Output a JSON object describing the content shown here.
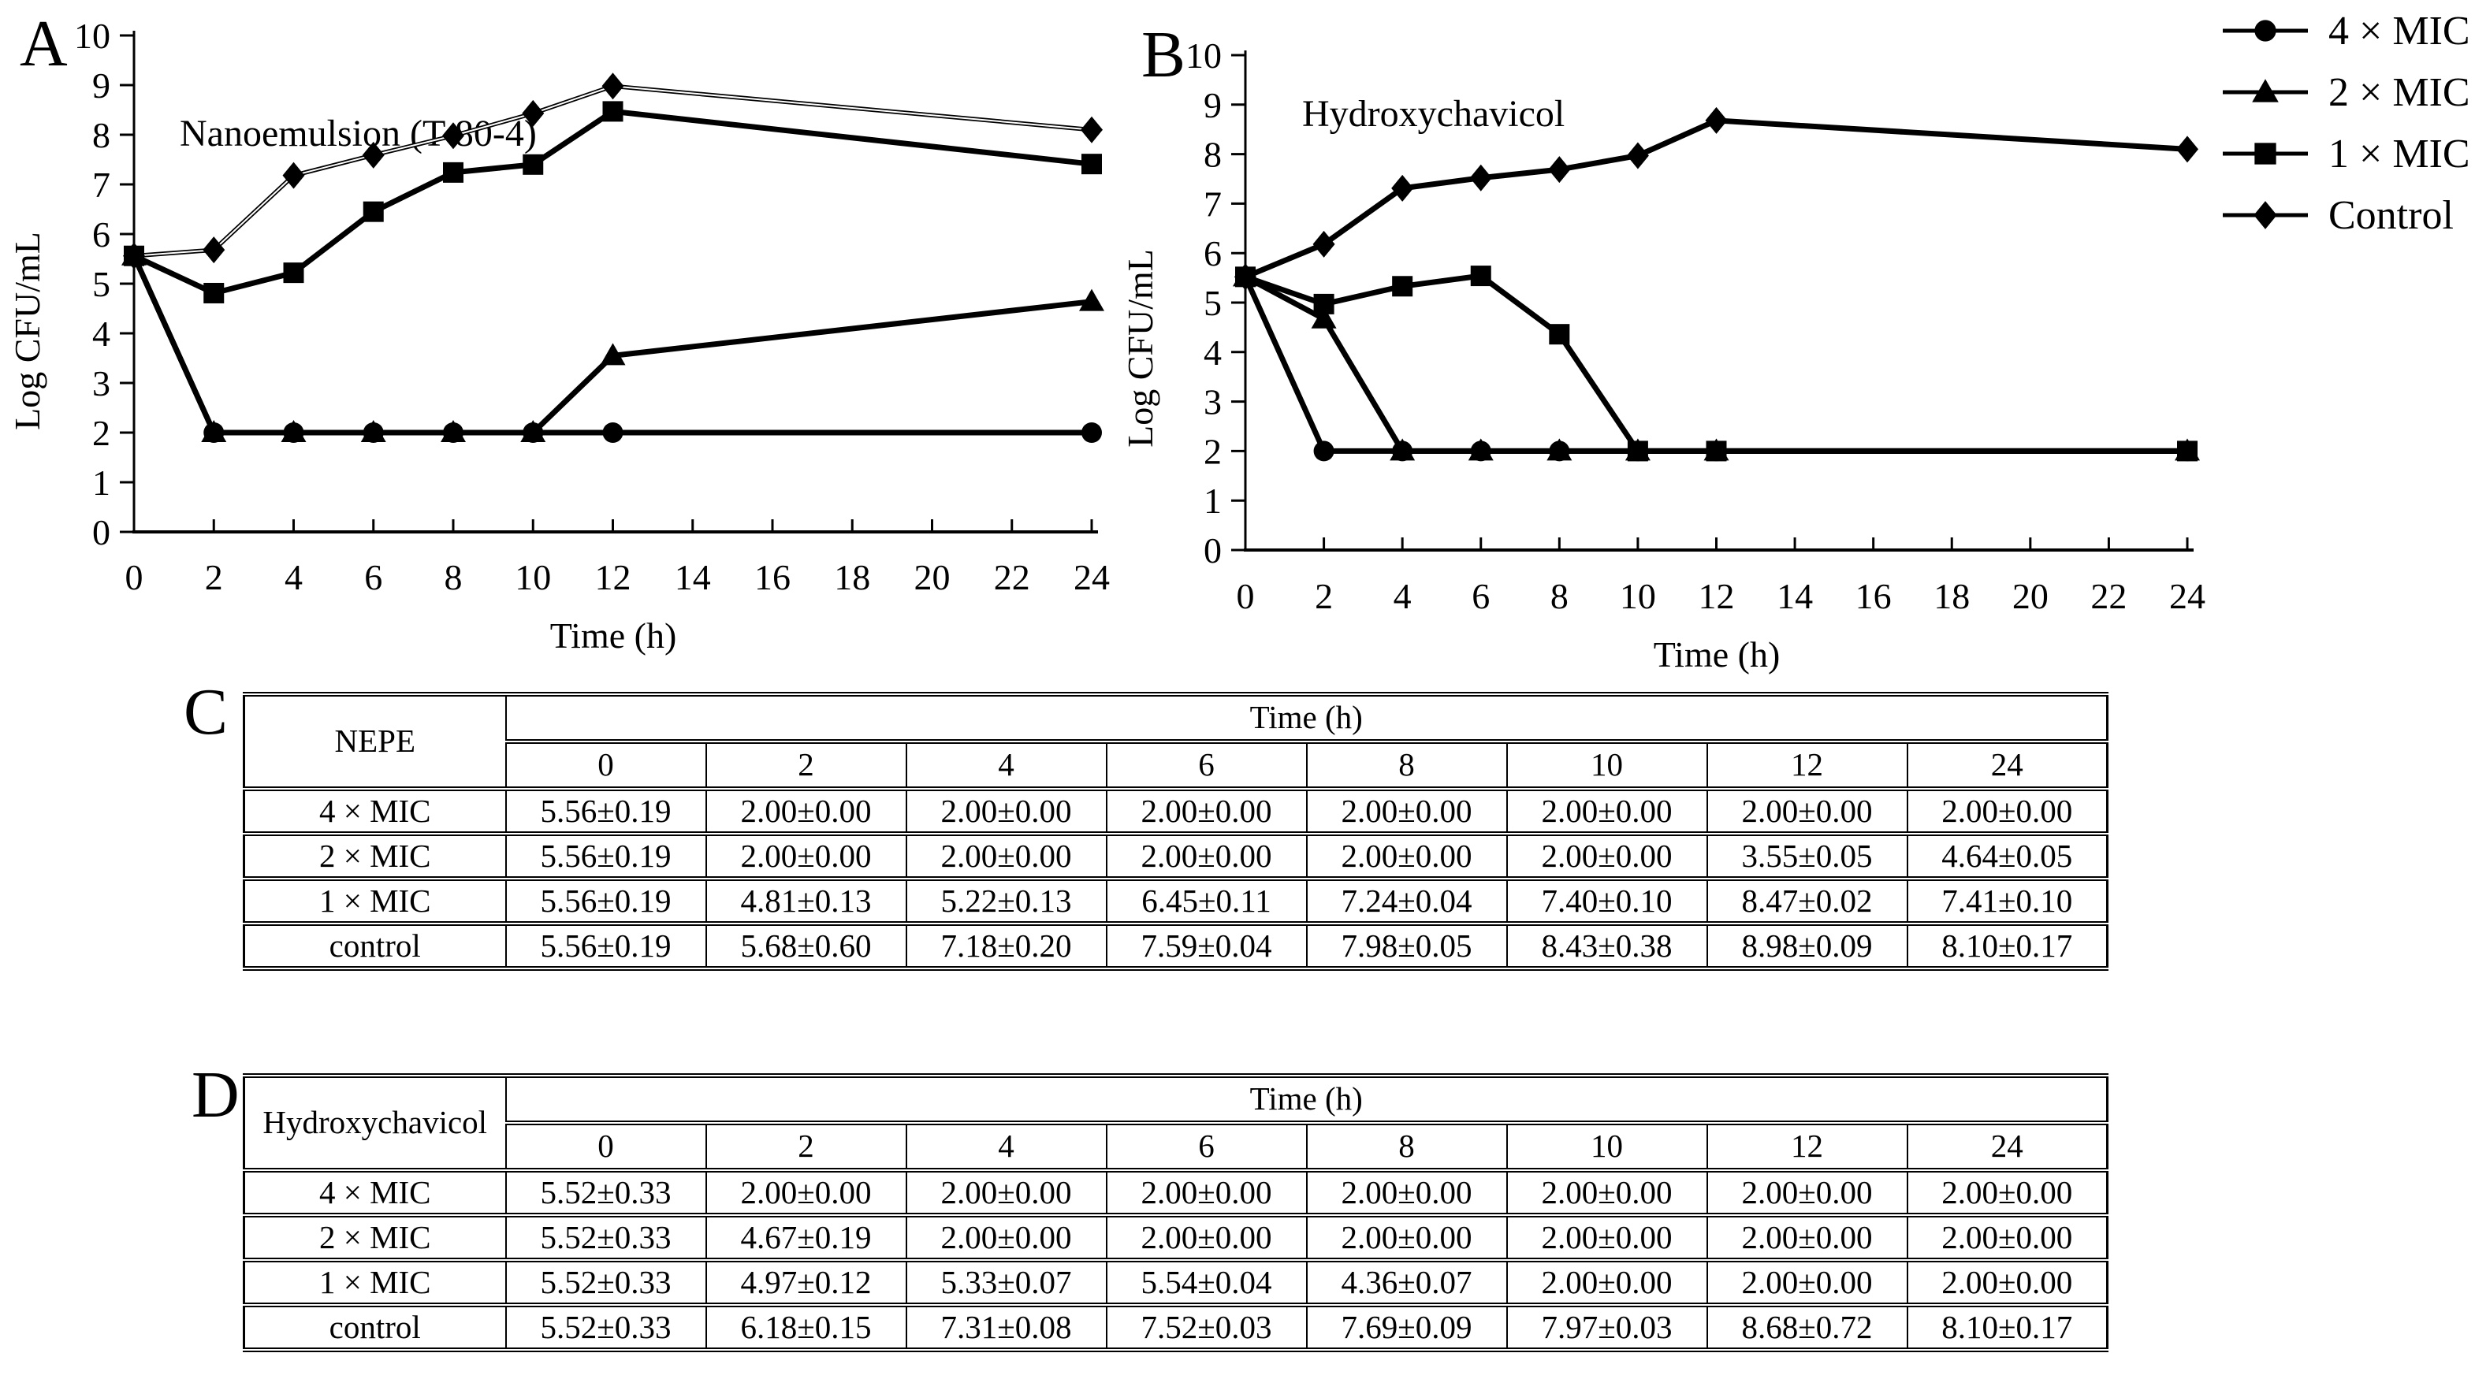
{
  "chart_data": [
    {
      "panel_label": "A",
      "type": "line",
      "title": "Nanoemulsion (T-80-4)",
      "xlabel": "Time (h)",
      "ylabel": "Log CFU/mL",
      "x": [
        0,
        2,
        4,
        6,
        8,
        10,
        12,
        24
      ],
      "xlim": [
        0,
        24
      ],
      "ylim": [
        0,
        10
      ],
      "x_ticks": [
        0,
        2,
        4,
        6,
        8,
        10,
        12,
        14,
        16,
        18,
        20,
        22,
        24
      ],
      "y_ticks": [
        0,
        1,
        2,
        3,
        4,
        5,
        6,
        7,
        8,
        9,
        10
      ],
      "grid": false,
      "legend_position": "outside-top-right",
      "series": [
        {
          "name": "4 × MIC",
          "marker": "circle",
          "values": [
            5.56,
            2.0,
            2.0,
            2.0,
            2.0,
            2.0,
            2.0,
            2.0
          ]
        },
        {
          "name": "2 × MIC",
          "marker": "triangle",
          "values": [
            5.56,
            2.0,
            2.0,
            2.0,
            2.0,
            2.0,
            3.55,
            4.64
          ]
        },
        {
          "name": "1 × MIC",
          "marker": "square",
          "values": [
            5.56,
            4.81,
            5.22,
            6.45,
            7.24,
            7.4,
            8.47,
            7.41
          ]
        },
        {
          "name": "Control",
          "marker": "diamond",
          "values": [
            5.56,
            5.68,
            7.18,
            7.59,
            7.98,
            8.43,
            8.98,
            8.1
          ],
          "line_style": "double"
        }
      ]
    },
    {
      "panel_label": "B",
      "type": "line",
      "title": "Hydroxychavicol",
      "xlabel": "Time (h)",
      "ylabel": "Log CFU/mL",
      "x": [
        0,
        2,
        4,
        6,
        8,
        10,
        12,
        24
      ],
      "xlim": [
        0,
        24
      ],
      "ylim": [
        0,
        10
      ],
      "x_ticks": [
        0,
        2,
        4,
        6,
        8,
        10,
        12,
        14,
        16,
        18,
        20,
        22,
        24
      ],
      "y_ticks": [
        0,
        1,
        2,
        3,
        4,
        5,
        6,
        7,
        8,
        9,
        10
      ],
      "grid": false,
      "legend_position": "outside-top-right",
      "series": [
        {
          "name": "4 × MIC",
          "marker": "circle",
          "values": [
            5.52,
            2.0,
            2.0,
            2.0,
            2.0,
            2.0,
            2.0,
            2.0
          ]
        },
        {
          "name": "2 × MIC",
          "marker": "triangle",
          "values": [
            5.52,
            4.67,
            2.0,
            2.0,
            2.0,
            2.0,
            2.0,
            2.0
          ]
        },
        {
          "name": "1 × MIC",
          "marker": "square",
          "values": [
            5.52,
            4.97,
            5.33,
            5.54,
            4.36,
            2.0,
            2.0,
            2.0
          ]
        },
        {
          "name": "Control",
          "marker": "diamond",
          "values": [
            5.52,
            6.18,
            7.31,
            7.52,
            7.69,
            7.97,
            8.68,
            8.1
          ]
        }
      ]
    }
  ],
  "legend": {
    "items": [
      {
        "marker": "circle",
        "label": "4 × MIC"
      },
      {
        "marker": "triangle",
        "label": "2 × MIC"
      },
      {
        "marker": "square",
        "label": "1 × MIC"
      },
      {
        "marker": "diamond",
        "label": "Control"
      }
    ]
  },
  "tables": [
    {
      "panel_label": "C",
      "corner": "NEPE",
      "group_header": "Time (h)",
      "time_cols": [
        "0",
        "2",
        "4",
        "6",
        "8",
        "10",
        "12",
        "24"
      ],
      "rows": [
        {
          "label": "4 × MIC",
          "values": [
            "5.56±0.19",
            "2.00±0.00",
            "2.00±0.00",
            "2.00±0.00",
            "2.00±0.00",
            "2.00±0.00",
            "2.00±0.00",
            "2.00±0.00"
          ]
        },
        {
          "label": "2 × MIC",
          "values": [
            "5.56±0.19",
            "2.00±0.00",
            "2.00±0.00",
            "2.00±0.00",
            "2.00±0.00",
            "2.00±0.00",
            "3.55±0.05",
            "4.64±0.05"
          ]
        },
        {
          "label": "1 × MIC",
          "values": [
            "5.56±0.19",
            "4.81±0.13",
            "5.22±0.13",
            "6.45±0.11",
            "7.24±0.04",
            "7.40±0.10",
            "8.47±0.02",
            "7.41±0.10"
          ]
        },
        {
          "label": "control",
          "values": [
            "5.56±0.19",
            "5.68±0.60",
            "7.18±0.20",
            "7.59±0.04",
            "7.98±0.05",
            "8.43±0.38",
            "8.98±0.09",
            "8.10±0.17"
          ]
        }
      ]
    },
    {
      "panel_label": "D",
      "corner": "Hydroxychavicol",
      "group_header": "Time (h)",
      "time_cols": [
        "0",
        "2",
        "4",
        "6",
        "8",
        "10",
        "12",
        "24"
      ],
      "rows": [
        {
          "label": "4 × MIC",
          "values": [
            "5.52±0.33",
            "2.00±0.00",
            "2.00±0.00",
            "2.00±0.00",
            "2.00±0.00",
            "2.00±0.00",
            "2.00±0.00",
            "2.00±0.00"
          ]
        },
        {
          "label": "2 × MIC",
          "values": [
            "5.52±0.33",
            "4.67±0.19",
            "2.00±0.00",
            "2.00±0.00",
            "2.00±0.00",
            "2.00±0.00",
            "2.00±0.00",
            "2.00±0.00"
          ]
        },
        {
          "label": "1 × MIC",
          "values": [
            "5.52±0.33",
            "4.97±0.12",
            "5.33±0.07",
            "5.54±0.04",
            "4.36±0.07",
            "2.00±0.00",
            "2.00±0.00",
            "2.00±0.00"
          ]
        },
        {
          "label": "control",
          "values": [
            "5.52±0.33",
            "6.18±0.15",
            "7.31±0.08",
            "7.52±0.03",
            "7.69±0.09",
            "7.97±0.03",
            "8.68±0.72",
            "8.10±0.17"
          ]
        }
      ]
    }
  ],
  "colors": {
    "ink": "#000000",
    "background": "#ffffff"
  }
}
